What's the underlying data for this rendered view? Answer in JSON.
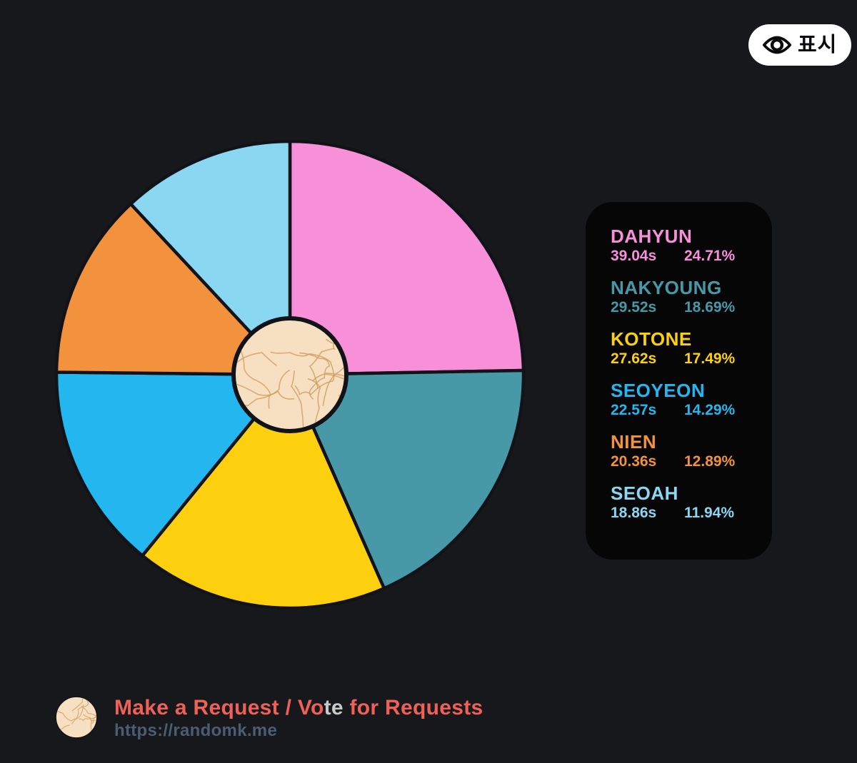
{
  "colors": {
    "background": "#17181c",
    "panel": "#060607",
    "outline": "#121318",
    "center_fill": "#f7e0c2",
    "squiggle": "#cf9d5f",
    "button_bg": "#ffffff",
    "button_fg": "#0b0b0d",
    "title": "#ef6057",
    "title_overlay": "#c9c9c9",
    "url": "#4a5d72"
  },
  "show_button": {
    "label": "표시",
    "icon": "eye-icon"
  },
  "chart_data": {
    "type": "pie",
    "start_angle_deg": 0,
    "direction": "clockwise",
    "value_unit": "seconds",
    "center_decoration": "cream textured circle",
    "slices": [
      {
        "label": "DAHYUN",
        "time": "39.04s",
        "time_s": 39.04,
        "percent": 24.71,
        "percent_label": "24.71%",
        "color": "#f78fd9"
      },
      {
        "label": "NAKYOUNG",
        "time": "29.52s",
        "time_s": 29.52,
        "percent": 18.69,
        "percent_label": "18.69%",
        "color": "#4899a8"
      },
      {
        "label": "KOTONE",
        "time": "27.62s",
        "time_s": 27.62,
        "percent": 17.49,
        "percent_label": "17.49%",
        "color": "#fcd00e"
      },
      {
        "label": "SEOYEON",
        "time": "22.57s",
        "time_s": 22.57,
        "percent": 14.29,
        "percent_label": "14.29%",
        "color": "#24b7ef"
      },
      {
        "label": "NIEN",
        "time": "20.36s",
        "time_s": 20.36,
        "percent": 12.89,
        "percent_label": "12.89%",
        "color": "#f2923c"
      },
      {
        "label": "SEOAH",
        "time": "18.86s",
        "time_s": 18.86,
        "percent": 11.94,
        "percent_label": "11.94%",
        "color": "#8ad7f1"
      }
    ],
    "legend_position": "right"
  },
  "footer": {
    "title_segments": [
      {
        "text": "Make a Request / Vo",
        "role": "primary"
      },
      {
        "text": "te",
        "role": "overlay"
      },
      {
        "text": " for Requests",
        "role": "primary"
      }
    ],
    "url": "https://randomk.me"
  }
}
